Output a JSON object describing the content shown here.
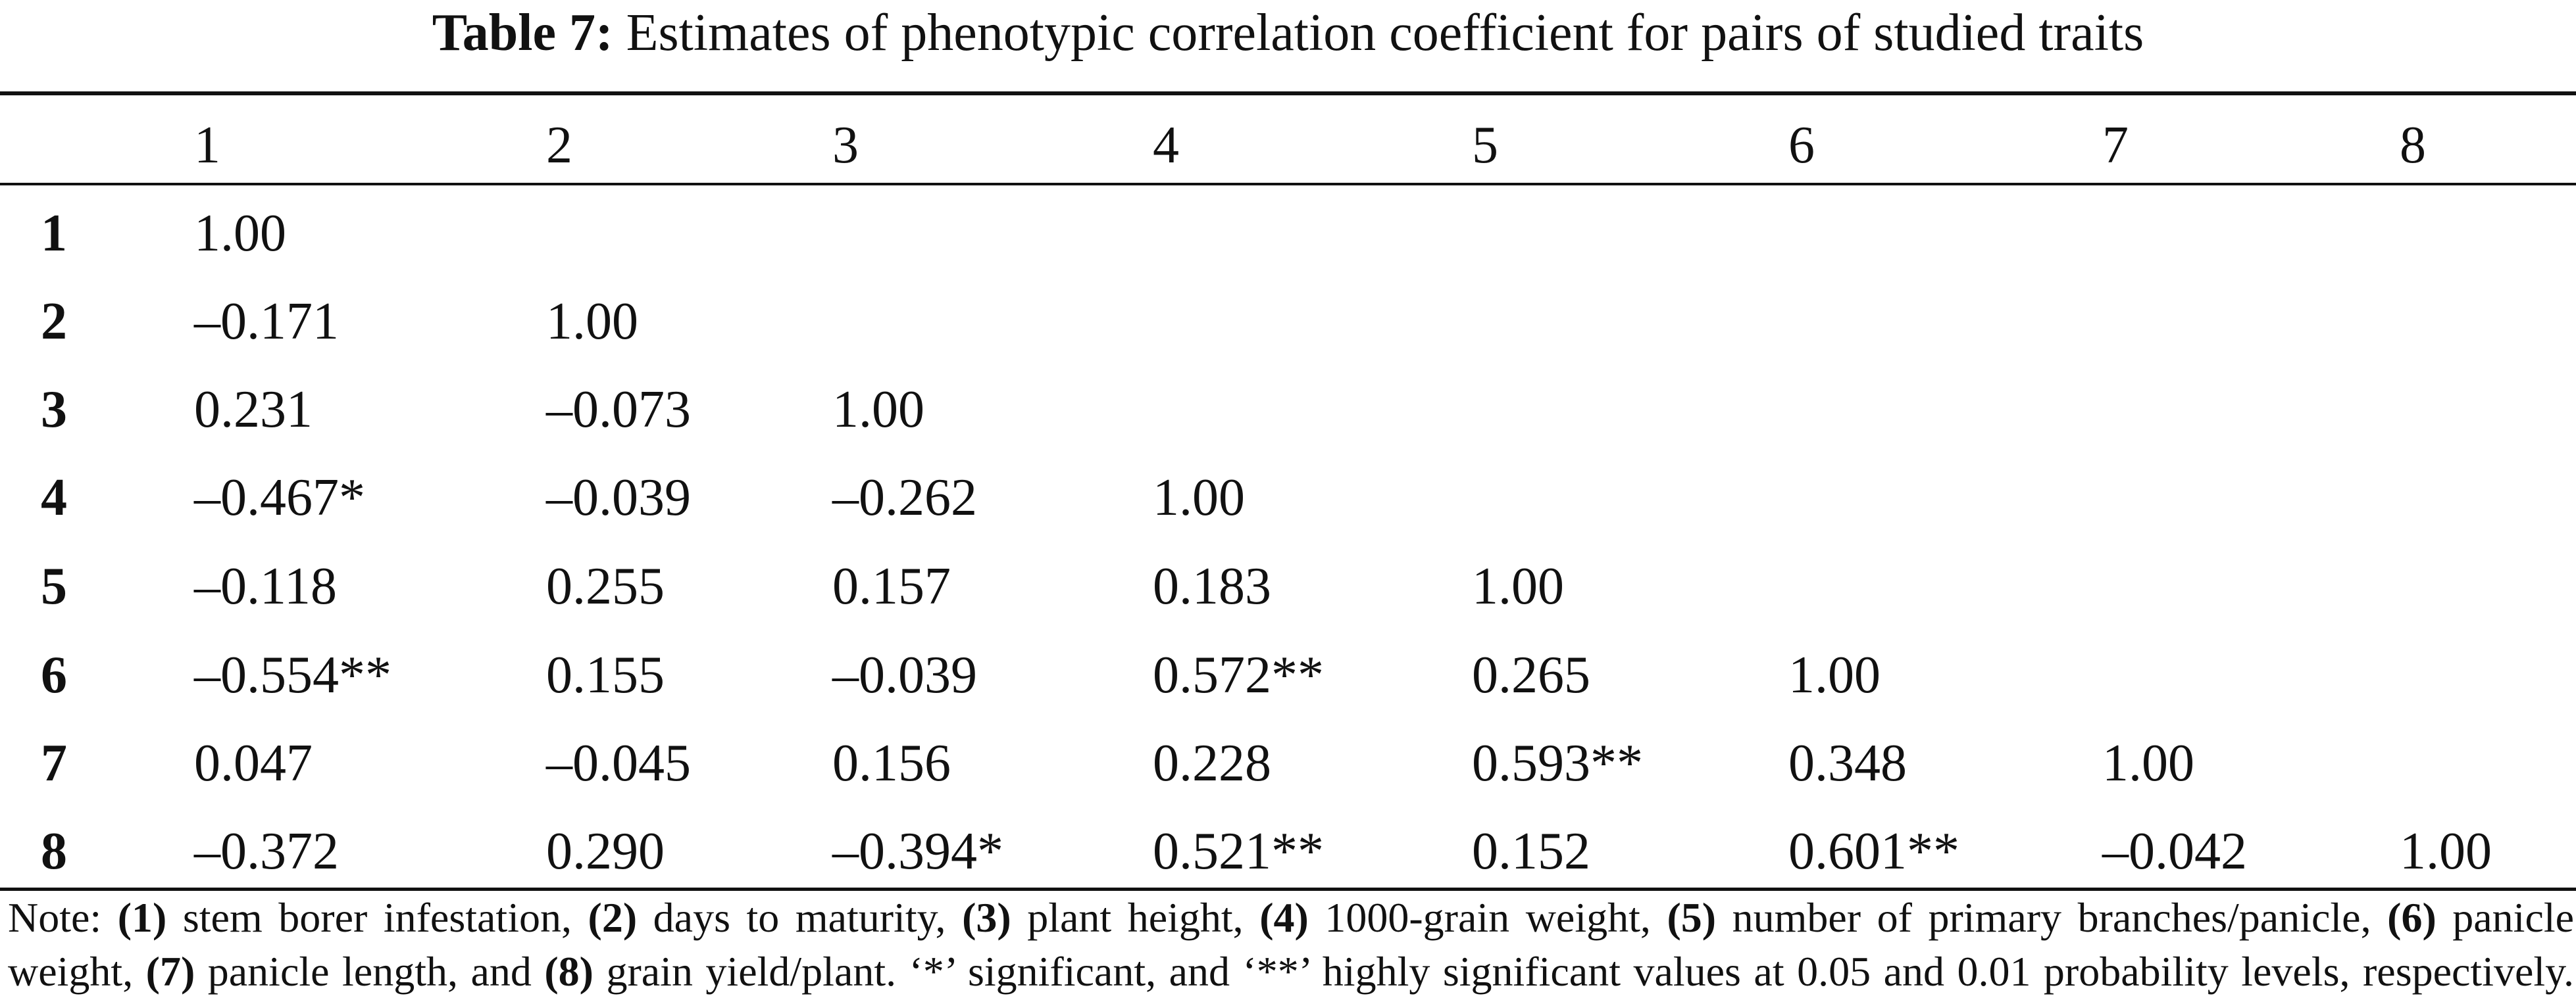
{
  "caption": {
    "label": "Table 7:",
    "text": "Estimates of phenotypic correlation coefficient for pairs of studied traits"
  },
  "table": {
    "column_headers": [
      "1",
      "2",
      "3",
      "4",
      "5",
      "6",
      "7",
      "8"
    ],
    "rows": [
      {
        "label": "1",
        "cells": [
          "1.00"
        ]
      },
      {
        "label": "2",
        "cells": [
          "–0.171",
          "1.00"
        ]
      },
      {
        "label": "3",
        "cells": [
          "0.231",
          "–0.073",
          "1.00"
        ]
      },
      {
        "label": "4",
        "cells": [
          "–0.467*",
          "–0.039",
          "–0.262",
          "1.00"
        ]
      },
      {
        "label": "5",
        "cells": [
          "–0.118",
          "0.255",
          "0.157",
          "0.183",
          "1.00"
        ]
      },
      {
        "label": "6",
        "cells": [
          "–0.554**",
          "0.155",
          "–0.039",
          "0.572**",
          "0.265",
          "1.00"
        ]
      },
      {
        "label": "7",
        "cells": [
          "0.047",
          "–0.045",
          "0.156",
          "0.228",
          "0.593**",
          "0.348",
          "1.00"
        ]
      },
      {
        "label": "8",
        "cells": [
          "–0.372",
          "0.290",
          "–0.394*",
          "0.521**",
          "0.152",
          "0.601**",
          "–0.042",
          "1.00"
        ]
      }
    ]
  },
  "note": {
    "prefix": "Note: ",
    "n1": "(1)",
    "t1": " stem borer infestation, ",
    "n2": "(2)",
    "t2": " days to maturity, ",
    "n3": "(3)",
    "t3": " plant height, ",
    "n4": "(4)",
    "t4": " 1000-grain weight, ",
    "n5": "(5)",
    "t5": " number of primary branches/panicle, ",
    "n6": "(6)",
    "t6": " panicle",
    "t6b": "weight, ",
    "n7": "(7)",
    "t7": " panicle length, and ",
    "n8": "(8)",
    "t8": " grain yield/plant. ‘*’ significant, and ‘**’ highly significant values at 0.05 and 0.01 probability levels, respectively."
  }
}
